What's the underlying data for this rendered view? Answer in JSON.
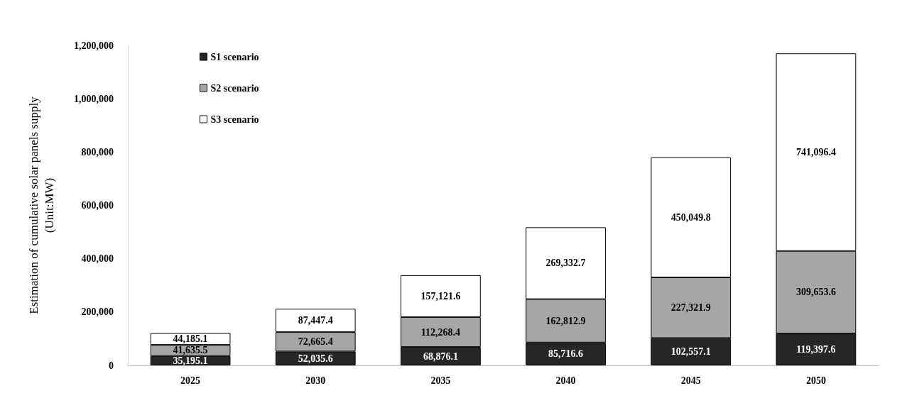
{
  "chart_data": {
    "type": "bar",
    "stacked": true,
    "ylabel": "Estimation of cumulative solar panels supply\n(Unit:MW)",
    "categories": [
      "2025",
      "2030",
      "2035",
      "2040",
      "2045",
      "2050"
    ],
    "series": [
      {
        "name": "S1 scenario",
        "color": "#262626",
        "values": [
          35195.1,
          52035.6,
          68876.1,
          85716.6,
          102557.1,
          119397.6
        ],
        "value_labels": [
          "35,195.1",
          "52,035.6",
          "68,876.1",
          "85,716.6",
          "102,557.1",
          "119,397.6"
        ]
      },
      {
        "name": "S2 scenario",
        "color": "#a6a6a6",
        "values": [
          41635.5,
          72665.4,
          112268.4,
          162812.9,
          227321.9,
          309653.6
        ],
        "value_labels": [
          "41,635.5",
          "72,665.4",
          "112,268.4",
          "162,812.9",
          "227,321.9",
          "309,653.6"
        ]
      },
      {
        "name": "S3 scenario",
        "color": "#ffffff",
        "values": [
          44185.1,
          87447.4,
          157121.6,
          269332.7,
          450049.8,
          741096.4
        ],
        "value_labels": [
          "44,185.1",
          "87,447.4",
          "157,121.6",
          "269,332.7",
          "450,049.8",
          "741,096.4"
        ]
      }
    ],
    "ylim": [
      0,
      1200000
    ],
    "yticks": [
      0,
      {
        "value": 200000,
        "label": "200,000"
      },
      {
        "value": 400000,
        "label": "400,000"
      },
      {
        "value": 600000,
        "label": "600,000"
      },
      {
        "value": 800000,
        "label": "800,000"
      },
      {
        "value": 1000000,
        "label": "1,000,000"
      },
      {
        "value": 1200000,
        "label": "1,200,000"
      }
    ],
    "grid": false,
    "legend": "top left"
  }
}
